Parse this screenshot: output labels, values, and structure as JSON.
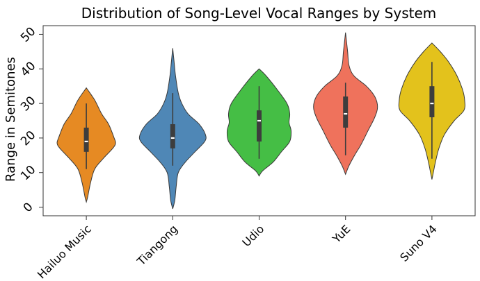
{
  "chart_data": {
    "type": "violin",
    "title": "Distribution of Song-Level Vocal Ranges by System",
    "xlabel": "",
    "ylabel": "Range in Semitones",
    "ylim": [
      -2.5,
      52.5
    ],
    "yticks": [
      0,
      10,
      20,
      30,
      40,
      50
    ],
    "grid": false,
    "legend": "none",
    "categories": [
      "Hailuo Music",
      "Tiangong",
      "Udio",
      "YuE",
      "Suno V4"
    ],
    "series": [
      {
        "category": "Hailuo Music",
        "color": "#e68a23",
        "whisker_low": 11,
        "q1": 16,
        "median": 19,
        "q3": 23,
        "whisker_high": 30,
        "profile": [
          [
            1.5,
            0
          ],
          [
            3,
            2
          ],
          [
            7,
            6
          ],
          [
            11,
            12
          ],
          [
            14,
            24
          ],
          [
            17,
            38
          ],
          [
            18.5,
            42
          ],
          [
            20,
            40
          ],
          [
            24,
            32
          ],
          [
            27,
            22
          ],
          [
            31,
            12
          ],
          [
            34.5,
            0
          ]
        ]
      },
      {
        "category": "Tiangong",
        "color": "#4f87b6",
        "whisker_low": 12,
        "q1": 17,
        "median": 20,
        "q3": 24,
        "whisker_high": 33,
        "profile": [
          [
            -0.5,
            0
          ],
          [
            2,
            3
          ],
          [
            6,
            5
          ],
          [
            10,
            8
          ],
          [
            13,
            18
          ],
          [
            16,
            32
          ],
          [
            19,
            46
          ],
          [
            21,
            47
          ],
          [
            24,
            38
          ],
          [
            27,
            22
          ],
          [
            30,
            13
          ],
          [
            33,
            8
          ],
          [
            38,
            4
          ],
          [
            42,
            2
          ],
          [
            46,
            0
          ]
        ]
      },
      {
        "category": "Udio",
        "color": "#45be45",
        "whisker_low": 14,
        "q1": 19,
        "median": 25,
        "q3": 28,
        "whisker_high": 35,
        "profile": [
          [
            9,
            0
          ],
          [
            10.5,
            5
          ],
          [
            13,
            20
          ],
          [
            16,
            32
          ],
          [
            19,
            44
          ],
          [
            22,
            46
          ],
          [
            24.5,
            43
          ],
          [
            27,
            44
          ],
          [
            30,
            40
          ],
          [
            34,
            26
          ],
          [
            38,
            10
          ],
          [
            40,
            0
          ]
        ]
      },
      {
        "category": "YuE",
        "color": "#ef725c",
        "whisker_low": 15,
        "q1": 23,
        "median": 27,
        "q3": 32,
        "whisker_high": 36,
        "profile": [
          [
            9.5,
            0
          ],
          [
            12,
            5
          ],
          [
            15,
            13
          ],
          [
            18,
            22
          ],
          [
            22,
            32
          ],
          [
            26,
            42
          ],
          [
            29,
            46
          ],
          [
            32,
            42
          ],
          [
            35,
            30
          ],
          [
            38,
            12
          ],
          [
            41,
            5
          ],
          [
            45,
            3
          ],
          [
            50.5,
            0
          ]
        ]
      },
      {
        "category": "Suno V4",
        "color": "#e3c21c",
        "whisker_low": 14,
        "q1": 26,
        "median": 30,
        "q3": 35,
        "whisker_high": 42,
        "profile": [
          [
            8,
            0
          ],
          [
            10,
            2
          ],
          [
            13,
            5
          ],
          [
            17,
            10
          ],
          [
            21,
            18
          ],
          [
            25,
            32
          ],
          [
            28,
            46
          ],
          [
            31,
            47
          ],
          [
            34,
            44
          ],
          [
            38,
            36
          ],
          [
            42,
            24
          ],
          [
            45,
            12
          ],
          [
            47.5,
            0
          ]
        ]
      }
    ]
  }
}
